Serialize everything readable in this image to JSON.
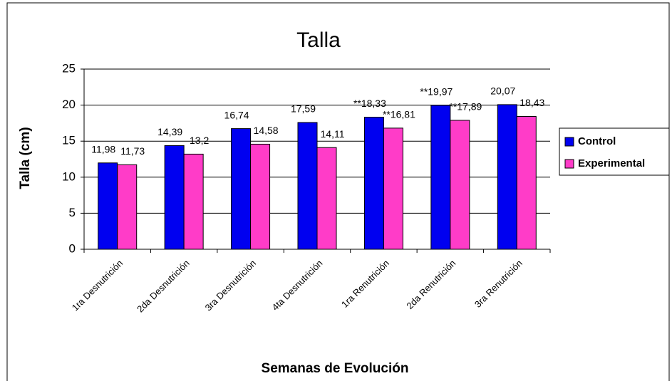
{
  "chart_data": {
    "type": "bar",
    "title": "Talla",
    "x_label": "Semanas de Evolución",
    "y_label": "Talla (cm)",
    "categories": [
      "1ra Desnutrición",
      "2da Desnutrición",
      "3ra Desnutrición",
      "4ta Desnutrición",
      "1ra Renutrición",
      "2da Renutrición",
      "3ra Renutrición"
    ],
    "series": [
      {
        "name": "Control",
        "color": "#0000f0",
        "values": [
          11.98,
          14.39,
          16.74,
          17.59,
          18.33,
          19.97,
          20.07
        ],
        "value_labels": [
          "11,98",
          "14,39",
          "16,74",
          "17,59",
          "**18,33",
          "**19,97",
          "20,07"
        ]
      },
      {
        "name": "Experimental",
        "color": "#ff3cc8",
        "values": [
          11.73,
          13.2,
          14.58,
          14.11,
          16.81,
          17.89,
          18.43
        ],
        "value_labels": [
          "11,73",
          "13,2",
          "14,58",
          "14,11",
          "**16,81",
          "**17,89",
          "18,43"
        ]
      }
    ],
    "ylim": [
      0,
      25
    ],
    "yticks": [
      0,
      5,
      10,
      15,
      20,
      25
    ],
    "grid": true,
    "legend": "right"
  }
}
